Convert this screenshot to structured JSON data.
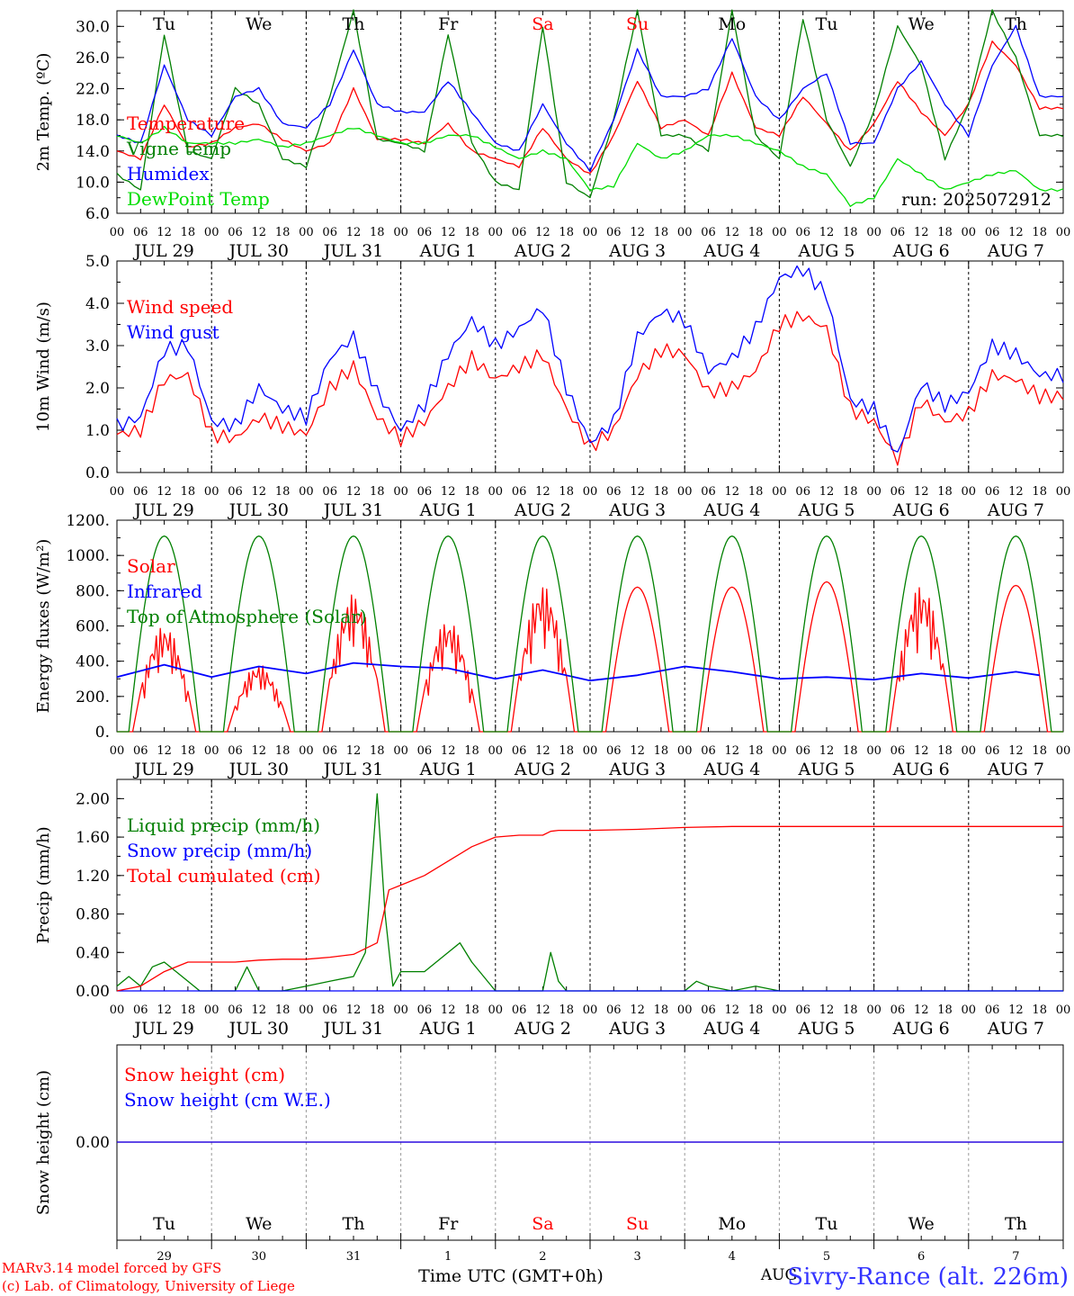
{
  "run_label": "run: 2025072912",
  "footer": {
    "model": "MARv3.14 model forced by GFS",
    "copyright": "(c) Lab. of Climatology, University of Liege",
    "axis_title": "Time UTC (GMT+0h)",
    "station": "Sivry-Rance (alt. 226m)",
    "month": "AUG"
  },
  "colors": {
    "red": "#ff0000",
    "green": "#008000",
    "blue": "#0000ff",
    "lightgreen": "#00dd00",
    "black": "#000000"
  },
  "time_axis": {
    "hour_ticks": [
      "00",
      "06",
      "12",
      "18"
    ],
    "end_tick": "00",
    "dates": [
      "JUL 29",
      "JUL 30",
      "JUL 31",
      "AUG  1",
      "AUG  2",
      "AUG  3",
      "AUG  4",
      "AUG  5",
      "AUG  6",
      "AUG  7"
    ],
    "weekdays": [
      "Tu",
      "We",
      "Th",
      "Fr",
      "Sa",
      "Su",
      "Mo",
      "Tu",
      "We",
      "Th"
    ],
    "weekday_red": [
      false,
      false,
      false,
      false,
      true,
      true,
      false,
      false,
      false,
      false
    ],
    "day_numbers": [
      "29",
      "30",
      "31",
      "1",
      "2",
      "3",
      "4",
      "5",
      "6",
      "7"
    ]
  },
  "chart_data": [
    {
      "type": "line",
      "ylabel": "2m Temp. (ºC)",
      "ylim": [
        6,
        32
      ],
      "yticks": [
        "6.0",
        "10.0",
        "14.0",
        "18.0",
        "22.0",
        "26.0",
        "30.0"
      ],
      "yticks_values": [
        6,
        10,
        14,
        18,
        22,
        26,
        30
      ],
      "series": [
        {
          "name": "Temperature",
          "color": "red",
          "t": [
            0,
            6,
            12,
            18,
            24,
            30,
            36,
            42,
            48,
            54,
            60,
            66,
            72,
            78,
            84,
            90,
            96,
            102,
            108,
            114,
            120,
            126,
            132,
            138,
            144,
            150,
            156,
            162,
            168,
            174,
            180,
            186,
            192,
            198,
            204,
            210,
            216,
            222,
            228,
            234
          ],
          "values": [
            14,
            13,
            20,
            14.5,
            15,
            17,
            17.5,
            15.5,
            14,
            15,
            22,
            15.5,
            15.5,
            15,
            17.5,
            14,
            13,
            12,
            17,
            13,
            11,
            16,
            23,
            17,
            18,
            16,
            24,
            17,
            16,
            21,
            17.5,
            14,
            17.5,
            23,
            19,
            16,
            20,
            28,
            25,
            19.5
          ]
        },
        {
          "name": "Vigne temp",
          "color": "green",
          "t": [
            0,
            6,
            12,
            18,
            24,
            30,
            36,
            42,
            48,
            54,
            60,
            66,
            72,
            78,
            84,
            90,
            96,
            102,
            108,
            114,
            120,
            126,
            132,
            138,
            144,
            150,
            156,
            162,
            168,
            174,
            180,
            186,
            192,
            198,
            204,
            210,
            216,
            222,
            228,
            234
          ],
          "values": [
            11,
            9,
            29,
            14,
            13,
            22,
            20,
            13,
            12,
            21,
            32,
            15.5,
            15,
            14,
            29,
            15,
            10,
            9,
            30,
            10,
            8,
            18,
            32,
            16,
            16,
            14,
            32,
            16,
            13,
            31,
            18,
            12,
            19,
            30,
            25,
            13,
            20,
            32,
            26,
            16
          ]
        },
        {
          "name": "Humidex",
          "color": "blue",
          "t": [
            0,
            6,
            12,
            18,
            24,
            30,
            36,
            42,
            48,
            54,
            60,
            66,
            72,
            78,
            84,
            90,
            96,
            102,
            108,
            114,
            120,
            126,
            132,
            138,
            144,
            150,
            156,
            162,
            168,
            174,
            180,
            186,
            192,
            198,
            204,
            210,
            216,
            222,
            228,
            234
          ],
          "values": [
            16,
            15,
            25,
            18,
            16,
            21,
            22,
            17.5,
            17,
            20,
            27,
            20,
            19,
            19,
            23,
            19,
            15,
            14,
            20,
            15,
            11.5,
            18,
            27,
            21,
            21,
            22,
            28.5,
            21,
            18,
            22,
            24,
            15,
            15,
            22,
            25.5,
            20,
            16,
            25,
            30,
            21
          ]
        },
        {
          "name": "DewPoint Temp",
          "color": "lightgreen",
          "t": [
            0,
            6,
            12,
            18,
            24,
            30,
            36,
            42,
            48,
            54,
            60,
            66,
            72,
            78,
            84,
            90,
            96,
            102,
            108,
            114,
            120,
            126,
            132,
            138,
            144,
            150,
            156,
            162,
            168,
            174,
            180,
            186,
            192,
            198,
            204,
            210,
            216,
            222,
            228,
            234
          ],
          "values": [
            16,
            15,
            17,
            15,
            15,
            15,
            15.5,
            14.5,
            15,
            16,
            17,
            16,
            15,
            15,
            16,
            16,
            14.5,
            13,
            14,
            13,
            9,
            9.5,
            15,
            13,
            14,
            16,
            16,
            15,
            14,
            12,
            11,
            7,
            8,
            13,
            11,
            9,
            10,
            11,
            11.5,
            9
          ]
        }
      ]
    },
    {
      "type": "line",
      "ylabel": "10m Wind (m/s)",
      "ylim": [
        0,
        5
      ],
      "yticks": [
        "0.0",
        "1.0",
        "2.0",
        "3.0",
        "4.0",
        "5.0"
      ],
      "yticks_values": [
        0,
        1,
        2,
        3,
        4,
        5
      ],
      "series": [
        {
          "name": "Wind speed",
          "color": "red",
          "t": [
            0,
            6,
            12,
            18,
            24,
            30,
            36,
            42,
            48,
            54,
            60,
            66,
            72,
            78,
            84,
            90,
            96,
            102,
            108,
            114,
            120,
            126,
            132,
            138,
            144,
            150,
            156,
            162,
            168,
            174,
            180,
            186,
            192,
            198,
            204,
            210,
            216,
            222,
            228,
            234
          ],
          "values": [
            0.9,
            1,
            2.2,
            2.3,
            0.9,
            0.8,
            1.3,
            1.1,
            0.9,
            2,
            2.5,
            1.3,
            0.8,
            1.2,
            2,
            2.7,
            2.2,
            2.5,
            2.8,
            1.5,
            0.6,
            1,
            2.3,
            2.9,
            2.8,
            1.9,
            2,
            2.4,
            3.5,
            3.7,
            3.4,
            1.5,
            1.2,
            0.3,
            1.7,
            1.2,
            1.4,
            2.3,
            2.2,
            1.8
          ]
        },
        {
          "name": "Wind gust",
          "color": "blue",
          "t": [
            0,
            6,
            12,
            18,
            24,
            30,
            36,
            42,
            48,
            54,
            60,
            66,
            72,
            78,
            84,
            90,
            96,
            102,
            108,
            114,
            120,
            126,
            132,
            138,
            144,
            150,
            156,
            162,
            168,
            174,
            180,
            186,
            192,
            198,
            204,
            210,
            216,
            222,
            228,
            234
          ],
          "values": [
            1.1,
            1.3,
            2.9,
            3,
            1.2,
            1.1,
            2,
            1.5,
            1.3,
            2.7,
            3.2,
            1.9,
            1,
            1.6,
            2.8,
            3.6,
            3,
            3.4,
            3.9,
            2,
            0.7,
            1.2,
            3.2,
            3.8,
            3.6,
            2.4,
            2.7,
            3.4,
            4.6,
            4.8,
            4.2,
            1.7,
            1.5,
            0.4,
            2.1,
            1.6,
            1.9,
            3,
            2.8,
            2.3
          ]
        }
      ]
    },
    {
      "type": "line",
      "ylabel": "Energy fluxes (W/m²)",
      "ylim": [
        0,
        1200
      ],
      "yticks": [
        "0.",
        "200.",
        "400.",
        "600.",
        "800.",
        "1000.",
        "1200."
      ],
      "yticks_values": [
        0,
        200,
        400,
        600,
        800,
        1000,
        1200
      ],
      "series": [
        {
          "name": "Solar",
          "color": "red",
          "peaks": [
            600,
            380,
            780,
            630,
            830,
            820,
            820,
            850,
            830,
            830
          ],
          "noisy": [
            true,
            true,
            true,
            true,
            true,
            false,
            false,
            false,
            true,
            false
          ]
        },
        {
          "name": "Infrared",
          "color": "blue",
          "t": [
            0,
            12,
            24,
            36,
            48,
            60,
            72,
            84,
            96,
            108,
            120,
            132,
            144,
            156,
            168,
            180,
            192,
            204,
            216,
            228,
            234
          ],
          "values": [
            310,
            380,
            310,
            370,
            330,
            390,
            370,
            360,
            300,
            350,
            290,
            320,
            370,
            340,
            300,
            310,
            295,
            330,
            305,
            340,
            320
          ]
        },
        {
          "name": "Top of Atmosphere (Solar)",
          "color": "green",
          "peak": 1110
        }
      ]
    },
    {
      "type": "line",
      "ylabel": "Precip (mm/h)",
      "ylim": [
        0,
        2.2
      ],
      "yticks": [
        "0.00",
        "0.40",
        "0.80",
        "1.20",
        "1.60",
        "2.00"
      ],
      "yticks_values": [
        0,
        0.4,
        0.8,
        1.2,
        1.6,
        2
      ],
      "series": [
        {
          "name": "Liquid precip (mm/h)",
          "color": "green",
          "t": [
            0,
            3,
            6,
            9,
            12,
            15,
            18,
            21,
            24,
            30,
            33,
            36,
            42,
            48,
            54,
            60,
            63,
            66,
            68,
            70,
            72,
            78,
            84,
            87,
            90,
            93,
            96,
            102,
            108,
            110,
            112,
            114,
            120,
            144,
            147,
            150,
            156,
            162,
            168,
            240
          ],
          "values": [
            0.05,
            0.15,
            0.05,
            0.25,
            0.3,
            0.2,
            0.1,
            0,
            0,
            0,
            0.25,
            0,
            0,
            0.05,
            0.1,
            0.15,
            0.4,
            2.05,
            0.8,
            0.05,
            0.2,
            0.2,
            0.4,
            0.5,
            0.3,
            0.15,
            0,
            0,
            0,
            0.4,
            0.1,
            0,
            0,
            0,
            0.1,
            0.05,
            0,
            0.05,
            0,
            0
          ]
        },
        {
          "name": "Snow precip (mm/h)",
          "color": "blue",
          "t": [
            0,
            240
          ],
          "values": [
            0,
            0
          ]
        },
        {
          "name": "Total cumulated (cm)",
          "color": "red",
          "t": [
            0,
            6,
            12,
            18,
            24,
            30,
            36,
            42,
            48,
            54,
            60,
            66,
            69,
            72,
            78,
            84,
            90,
            96,
            102,
            108,
            110,
            112,
            120,
            132,
            144,
            156,
            168,
            180,
            192,
            204,
            216,
            228,
            240
          ],
          "values": [
            0,
            0.05,
            0.2,
            0.3,
            0.3,
            0.3,
            0.32,
            0.33,
            0.33,
            0.35,
            0.38,
            0.5,
            1.05,
            1.1,
            1.2,
            1.35,
            1.5,
            1.6,
            1.62,
            1.62,
            1.66,
            1.67,
            1.67,
            1.68,
            1.7,
            1.71,
            1.71,
            1.71,
            1.71,
            1.71,
            1.71,
            1.71,
            1.71
          ]
        }
      ]
    },
    {
      "type": "line",
      "ylabel": "Snow height (cm)",
      "yticks": [
        "0.00"
      ],
      "series": [
        {
          "name": "Snow height (cm)",
          "color": "red",
          "t": [
            0,
            240
          ],
          "values": [
            0,
            0
          ]
        },
        {
          "name": "Snow height (cm W.E.)",
          "color": "blue",
          "t": [
            0,
            240
          ],
          "values": [
            0,
            0
          ]
        }
      ]
    }
  ]
}
